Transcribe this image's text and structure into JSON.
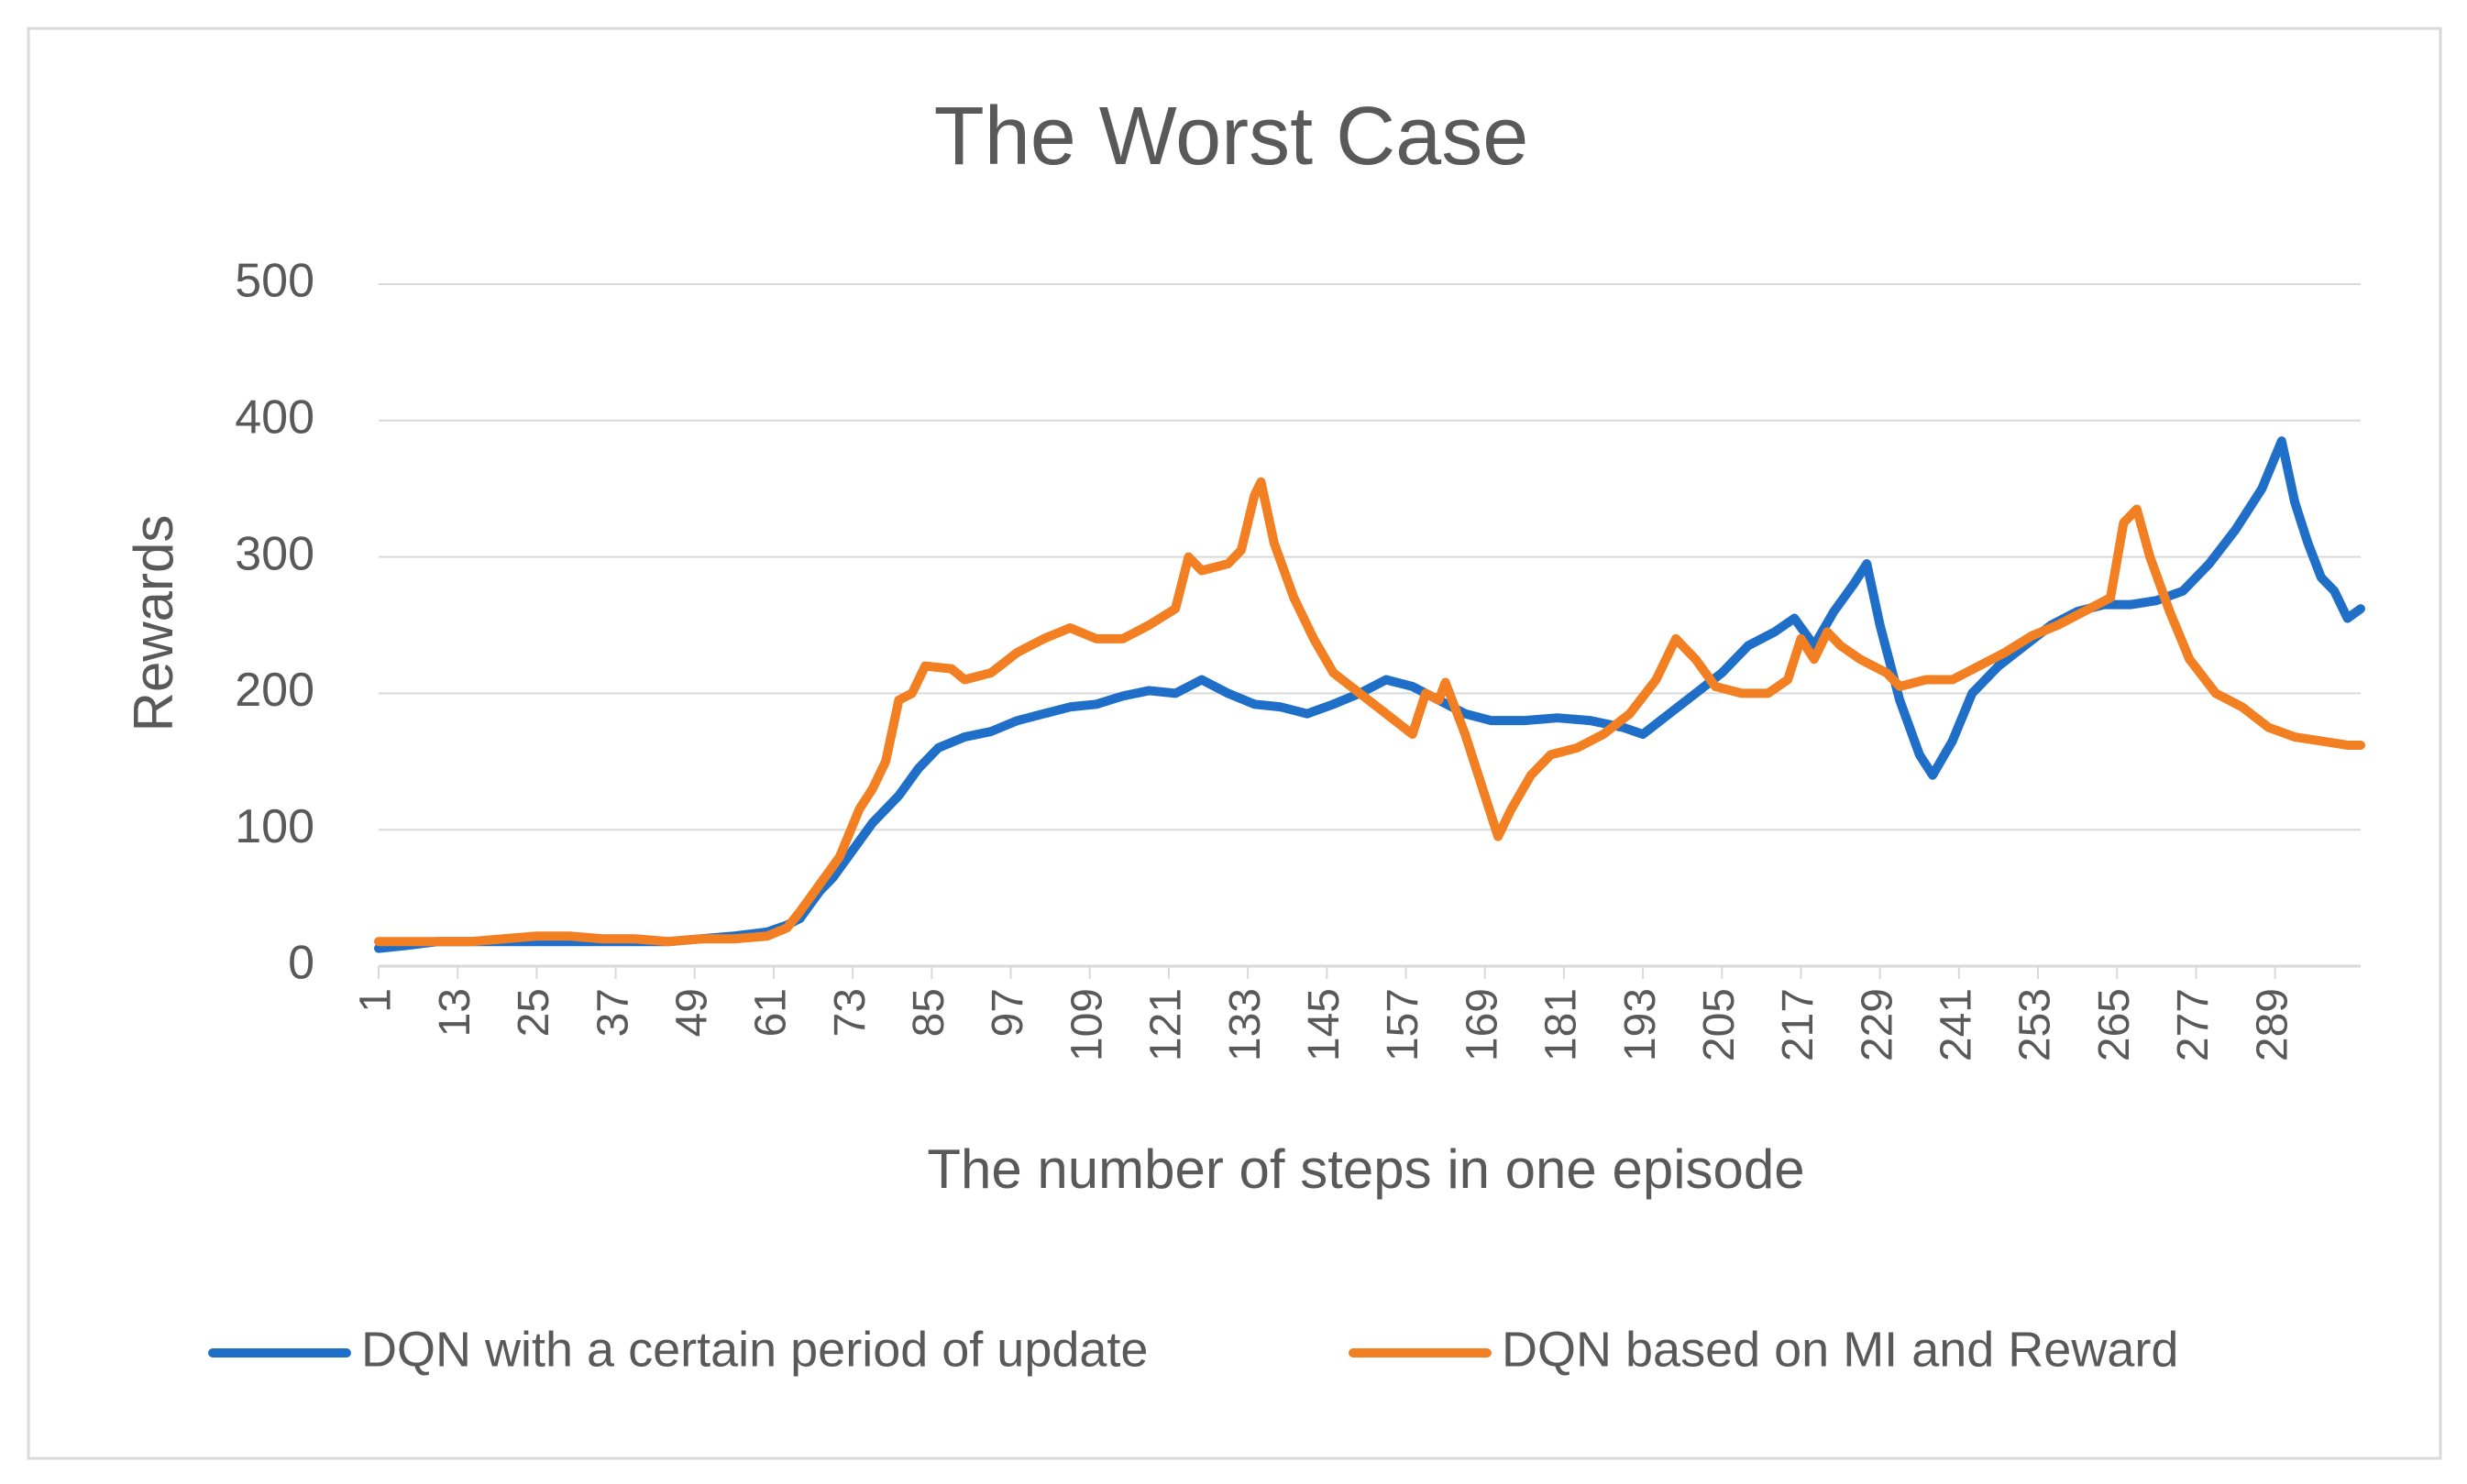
{
  "chart_data": {
    "type": "line",
    "title": "The Worst Case",
    "x_label": "The number of steps in one episode",
    "y_label": "Rewards",
    "xlim": [
      1,
      302
    ],
    "xticks": [
      1,
      13,
      25,
      37,
      49,
      61,
      73,
      85,
      97,
      109,
      121,
      133,
      145,
      157,
      169,
      181,
      193,
      205,
      217,
      229,
      241,
      253,
      265,
      277,
      289
    ],
    "ylim": [
      0,
      500
    ],
    "yticks": [
      0,
      100,
      200,
      300,
      400,
      500
    ],
    "grid": true,
    "legend": "bottom",
    "series": [
      {
        "name": "DQN with a certain period of update",
        "color": "#1f6fc9",
        "x": [
          1,
          5,
          10,
          15,
          20,
          25,
          30,
          35,
          40,
          45,
          50,
          55,
          60,
          63,
          65,
          68,
          70,
          73,
          76,
          80,
          83,
          86,
          90,
          94,
          98,
          102,
          106,
          110,
          114,
          118,
          122,
          126,
          130,
          134,
          138,
          142,
          146,
          150,
          154,
          158,
          162,
          166,
          170,
          175,
          180,
          185,
          190,
          193,
          197,
          201,
          205,
          209,
          213,
          216,
          219,
          222,
          225,
          227,
          229,
          232,
          235,
          237,
          240,
          243,
          247,
          251,
          255,
          259,
          263,
          267,
          271,
          275,
          279,
          283,
          287,
          290,
          292,
          294,
          296,
          298,
          300,
          302
        ],
        "values": [
          13,
          15,
          18,
          18,
          18,
          18,
          18,
          18,
          18,
          18,
          20,
          22,
          25,
          30,
          35,
          55,
          65,
          85,
          105,
          125,
          145,
          160,
          168,
          172,
          180,
          185,
          190,
          192,
          198,
          202,
          200,
          210,
          200,
          192,
          190,
          185,
          192,
          200,
          210,
          205,
          195,
          185,
          180,
          180,
          182,
          180,
          175,
          170,
          185,
          200,
          215,
          235,
          245,
          255,
          235,
          260,
          280,
          295,
          250,
          195,
          155,
          140,
          165,
          200,
          220,
          235,
          250,
          260,
          265,
          265,
          268,
          275,
          295,
          320,
          350,
          385,
          340,
          310,
          285,
          275,
          255,
          262
        ]
      },
      {
        "name": "DQN based on MI and Reward",
        "color": "#f27f22",
        "x": [
          1,
          10,
          15,
          20,
          25,
          30,
          35,
          40,
          45,
          50,
          55,
          60,
          63,
          65,
          68,
          71,
          74,
          76,
          78,
          80,
          82,
          84,
          88,
          90,
          94,
          98,
          102,
          106,
          110,
          114,
          118,
          122,
          124,
          126,
          130,
          132,
          134,
          135,
          137,
          140,
          143,
          146,
          150,
          154,
          158,
          160,
          162,
          163,
          166,
          169,
          171,
          173,
          176,
          179,
          183,
          187,
          191,
          195,
          198,
          201,
          204,
          208,
          212,
          215,
          217,
          219,
          221,
          223,
          226,
          230,
          232,
          236,
          240,
          244,
          248,
          252,
          256,
          260,
          264,
          266,
          268,
          270,
          273,
          276,
          280,
          284,
          288,
          292,
          296,
          300,
          302
        ],
        "values": [
          18,
          18,
          18,
          20,
          22,
          22,
          20,
          20,
          18,
          20,
          20,
          22,
          28,
          40,
          60,
          80,
          115,
          130,
          150,
          195,
          200,
          220,
          218,
          210,
          215,
          230,
          240,
          248,
          240,
          240,
          250,
          262,
          300,
          290,
          295,
          305,
          345,
          355,
          310,
          270,
          240,
          215,
          200,
          185,
          170,
          200,
          195,
          208,
          170,
          125,
          95,
          115,
          140,
          155,
          160,
          170,
          185,
          210,
          240,
          225,
          205,
          200,
          200,
          210,
          240,
          225,
          245,
          235,
          225,
          215,
          205,
          210,
          210,
          220,
          230,
          242,
          250,
          260,
          270,
          325,
          335,
          300,
          260,
          225,
          200,
          190,
          175,
          168,
          165,
          162,
          162
        ]
      }
    ]
  }
}
